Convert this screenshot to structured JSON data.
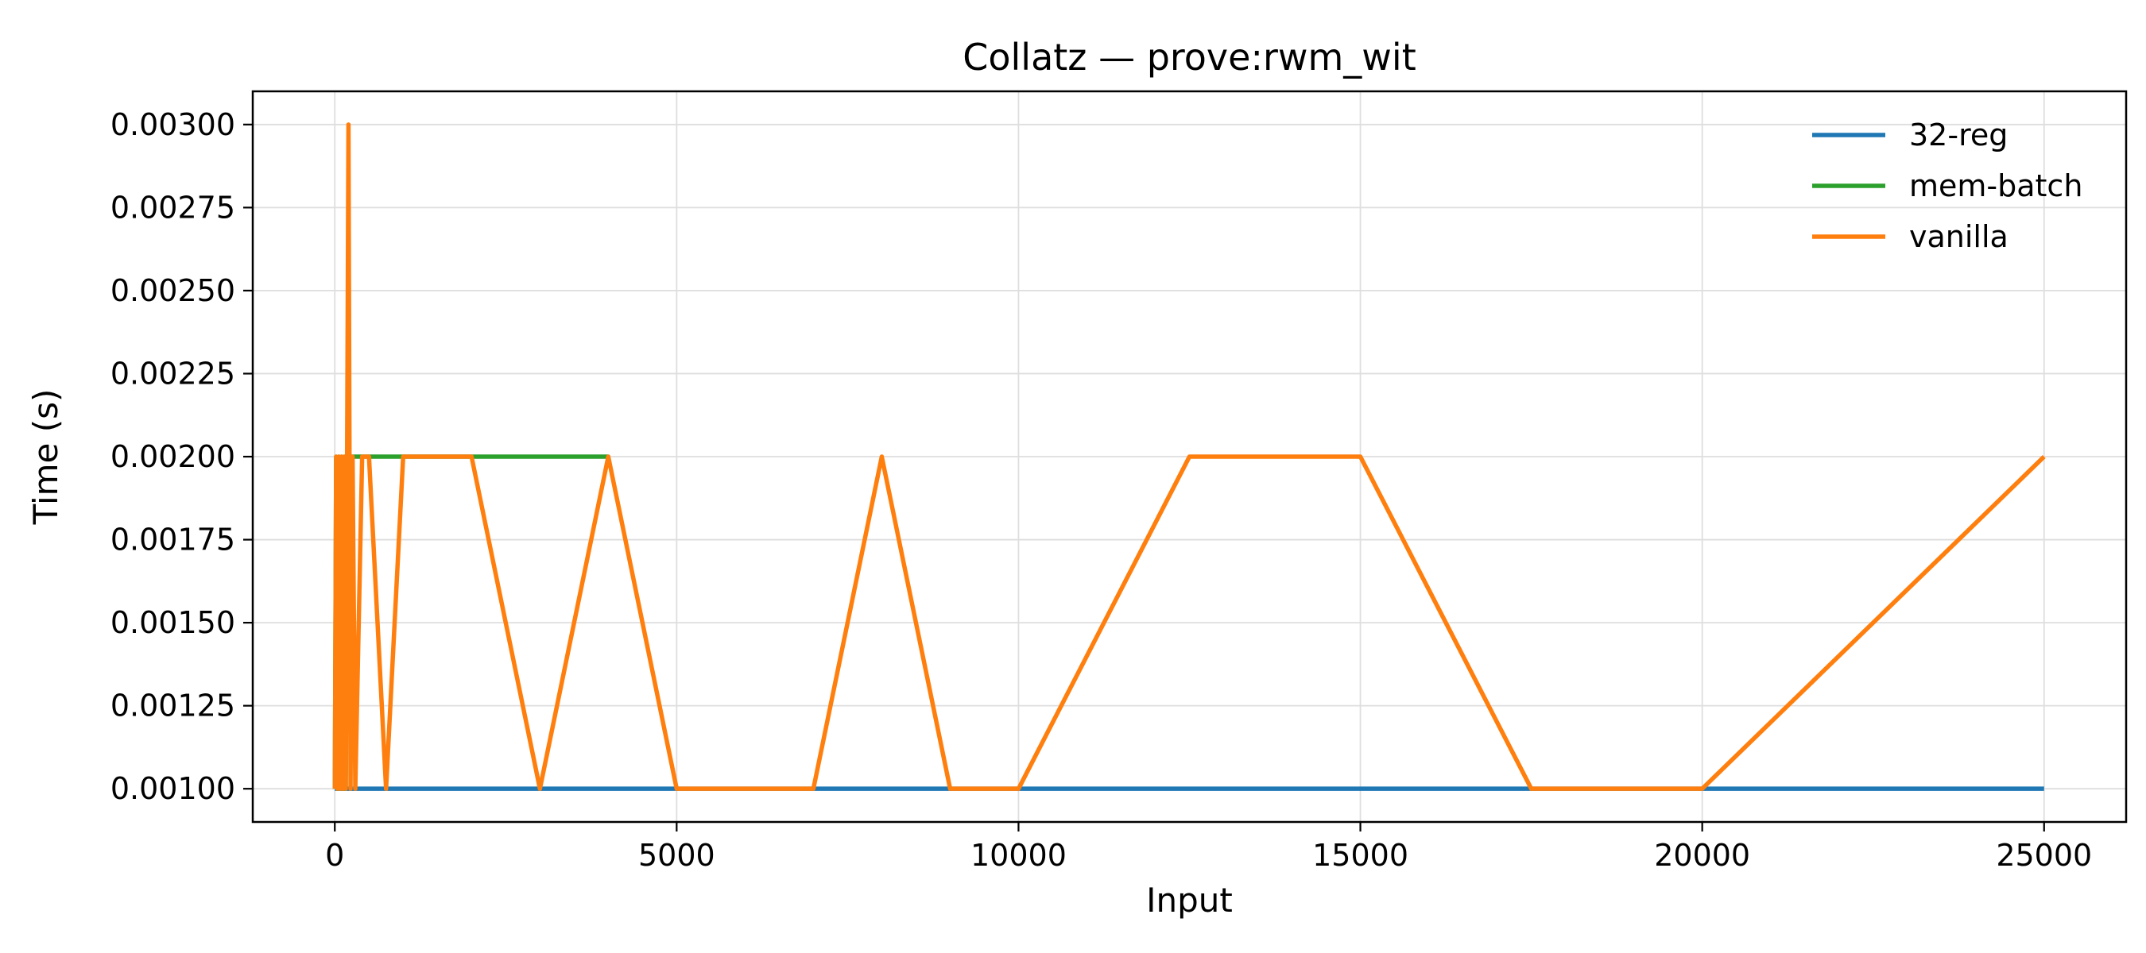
{
  "chart_data": {
    "type": "line",
    "title": "Collatz — prove:rwm_wit",
    "xlabel": "Input",
    "ylabel": "Time (s)",
    "xlim": [
      -1200,
      26200
    ],
    "ylim": [
      0.0009,
      0.0031
    ],
    "x_ticks": [
      0,
      5000,
      10000,
      15000,
      20000,
      25000
    ],
    "x_tick_labels": [
      "0",
      "5000",
      "10000",
      "15000",
      "20000",
      "25000"
    ],
    "y_ticks": [
      0.001,
      0.00125,
      0.0015,
      0.00175,
      0.002,
      0.00225,
      0.0025,
      0.00275,
      0.003
    ],
    "y_tick_labels": [
      "0.00100",
      "0.00125",
      "0.00150",
      "0.00175",
      "0.00200",
      "0.00225",
      "0.00250",
      "0.00275",
      "0.00300"
    ],
    "grid": true,
    "legend_position": "top-right",
    "series": [
      {
        "name": "32-reg",
        "color": "#1f77b4",
        "x": [
          1,
          25000
        ],
        "y": [
          0.001,
          0.001
        ]
      },
      {
        "name": "mem-batch",
        "color": "#2ca02c",
        "x": [
          1,
          20,
          40,
          60,
          80,
          100,
          120,
          140,
          160,
          180,
          200,
          250,
          300,
          400,
          500,
          1000,
          2000,
          3000,
          4000
        ],
        "y": [
          0.001,
          0.002,
          0.001,
          0.002,
          0.001,
          0.002,
          0.001,
          0.002,
          0.001,
          0.002,
          0.002,
          0.002,
          0.002,
          0.002,
          0.002,
          0.002,
          0.002,
          0.002,
          0.002
        ]
      },
      {
        "name": "vanilla",
        "color": "#ff7f0e",
        "x": [
          1,
          20,
          40,
          60,
          80,
          100,
          120,
          140,
          160,
          180,
          200,
          230,
          260,
          300,
          400,
          500,
          750,
          1000,
          2000,
          3000,
          4000,
          5000,
          6000,
          7000,
          8000,
          9000,
          10000,
          12500,
          15000,
          17500,
          20000,
          25000
        ],
        "y": [
          0.001,
          0.002,
          0.001,
          0.002,
          0.001,
          0.002,
          0.001,
          0.002,
          0.001,
          0.002,
          0.003,
          0.001,
          0.002,
          0.001,
          0.002,
          0.002,
          0.001,
          0.002,
          0.002,
          0.001,
          0.002,
          0.001,
          0.001,
          0.001,
          0.002,
          0.001,
          0.001,
          0.002,
          0.002,
          0.001,
          0.001,
          0.002
        ]
      }
    ]
  }
}
